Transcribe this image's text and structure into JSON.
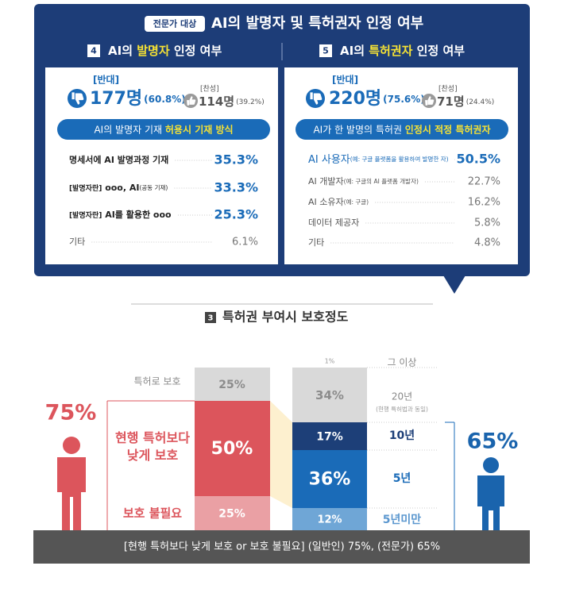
{
  "header": {
    "badge": "전문가 대상",
    "title": "AI의 발명자 및 특허권자 인정 여부"
  },
  "panels": [
    {
      "number": "4",
      "heading": [
        "AI의 ",
        "발명자",
        " 인정 여부"
      ],
      "oppose": {
        "label": "[반대]",
        "count": "177명",
        "pct": "(60.8%)"
      },
      "support": {
        "label": "[찬성]",
        "count": "114명",
        "pct": "(39.2%)"
      },
      "pill": [
        "AI의 발명자 기재 ",
        "허용시 기재 방식"
      ],
      "rows": [
        {
          "label": "명세서에 AI 발명과정 기재",
          "value": "35.3%"
        },
        {
          "tag": "[발명자란]",
          "label": " ooo, AI",
          "note": "(공동 기재)",
          "value": "33.3%"
        },
        {
          "tag": "[발명자란]",
          "label": " AI를 활용한 ooo",
          "value": "25.3%"
        },
        {
          "label": "기타",
          "value": "6.1%"
        }
      ]
    },
    {
      "number": "5",
      "heading": [
        "AI의 ",
        "특허권자",
        " 인정 여부"
      ],
      "oppose": {
        "label": "[반대]",
        "count": "220명",
        "pct": "(75.6%)"
      },
      "support": {
        "label": "[찬성]",
        "count": "71명",
        "pct": "(24.4%)"
      },
      "pill": [
        "AI가 한 발명의 특허권 ",
        "인정시 적정 특허권자"
      ],
      "rows": [
        {
          "label": "AI 사용자",
          "note": "(예: 구글 플랫폼을 활용하여 발명한 자)",
          "value": "50.5%"
        },
        {
          "label": "AI 개발자",
          "note": "(예: 구글의 AI 플랫폼 개발자)",
          "value": "22.7%"
        },
        {
          "label": "AI 소유자",
          "note": "(예: 구글)",
          "value": "16.2%"
        },
        {
          "label": "데이터 제공자",
          "value": "5.8%"
        },
        {
          "label": "기타",
          "value": "4.8%"
        }
      ]
    }
  ],
  "protection": {
    "number": "3",
    "title": "특허권 부여시 보호정도",
    "general": {
      "total": "75%",
      "segments": [
        {
          "label": "특허로 보호",
          "value": "25%"
        },
        {
          "label": "현행 특허보다 낮게 보호",
          "value": "50%"
        },
        {
          "label": "보호 불필요",
          "value": "25%"
        }
      ]
    },
    "expert": {
      "total": "65%",
      "segments": [
        {
          "value": "1%",
          "label": "그 이상"
        },
        {
          "value": "34%",
          "label": "20년",
          "note": "(현행 특허법과 동일)"
        },
        {
          "value": "17%",
          "label": "10년"
        },
        {
          "value": "36%",
          "label": "5년"
        },
        {
          "value": "12%",
          "label": "5년미만"
        }
      ]
    },
    "footer": "[현행 특허보다 낮게 보호 or 보호 불필요] (일반인) 75%, (전문가) 65%"
  }
}
